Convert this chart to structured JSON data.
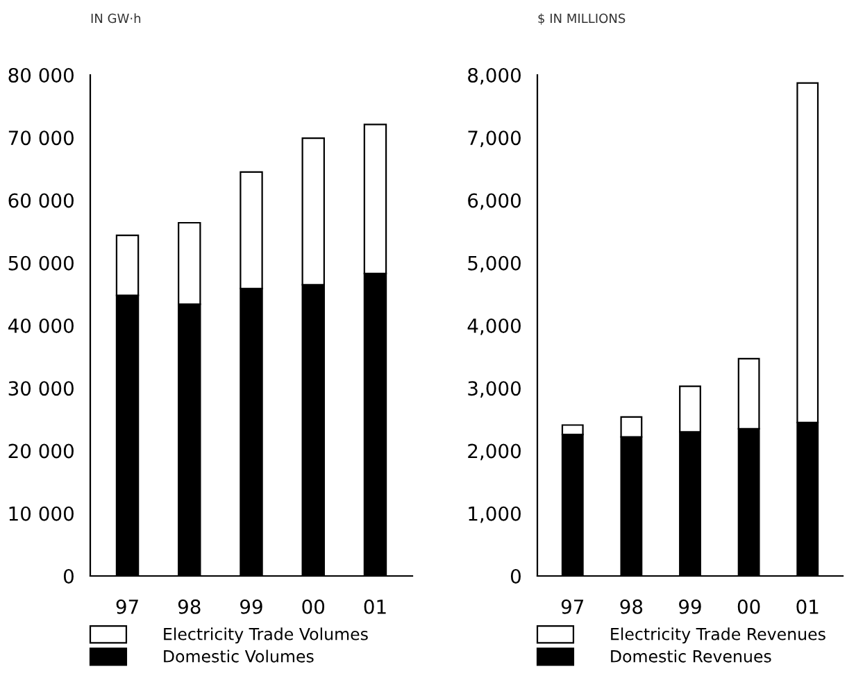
{
  "chart_data": [
    {
      "type": "bar",
      "stacked": true,
      "ylabel": "IN GW·h",
      "categories": [
        "97",
        "98",
        "99",
        "00",
        "01"
      ],
      "ylim": [
        0,
        80000
      ],
      "yticks": [
        {
          "value": 0,
          "label": "0"
        },
        {
          "value": 10000,
          "label": "10 000"
        },
        {
          "value": 20000,
          "label": "20 000"
        },
        {
          "value": 30000,
          "label": "30 000"
        },
        {
          "value": 40000,
          "label": "40 000"
        },
        {
          "value": 50000,
          "label": "50 000"
        },
        {
          "value": 60000,
          "label": "60 000"
        },
        {
          "value": 70000,
          "label": "70 000"
        },
        {
          "value": 80000,
          "label": "80 000"
        }
      ],
      "grid": false,
      "legend": "bottom",
      "series": [
        {
          "name": "Domestic Volumes",
          "color": "#000000",
          "values": [
            44800,
            43400,
            45900,
            46500,
            48300
          ]
        },
        {
          "name": "Electricity Trade Volumes",
          "color": "#ffffff",
          "values": [
            9600,
            13000,
            18600,
            23400,
            23800
          ]
        }
      ]
    },
    {
      "type": "bar",
      "stacked": true,
      "ylabel": "$ IN MILLIONS",
      "categories": [
        "97",
        "98",
        "99",
        "00",
        "01"
      ],
      "ylim": [
        0,
        8000
      ],
      "yticks": [
        {
          "value": 0,
          "label": "0"
        },
        {
          "value": 1000,
          "label": "1,000"
        },
        {
          "value": 2000,
          "label": "2,000"
        },
        {
          "value": 3000,
          "label": "3,000"
        },
        {
          "value": 4000,
          "label": "4,000"
        },
        {
          "value": 5000,
          "label": "5,000"
        },
        {
          "value": 6000,
          "label": "6,000"
        },
        {
          "value": 7000,
          "label": "7,000"
        },
        {
          "value": 8000,
          "label": "8,000"
        }
      ],
      "grid": false,
      "legend": "bottom",
      "series": [
        {
          "name": "Domestic Revenues",
          "color": "#000000",
          "values": [
            2260,
            2220,
            2300,
            2350,
            2450
          ]
        },
        {
          "name": "Electricity Trade Revenues",
          "color": "#ffffff",
          "values": [
            150,
            320,
            730,
            1120,
            5420
          ]
        }
      ]
    }
  ]
}
